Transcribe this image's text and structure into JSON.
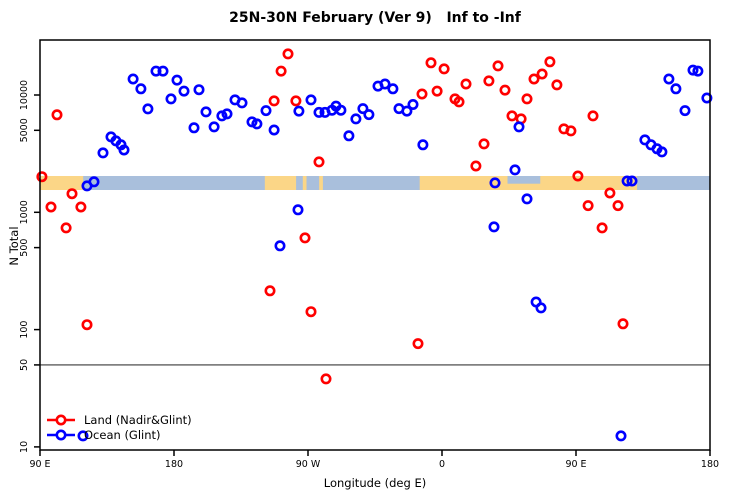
{
  "title": "25N-30N February (Ver 9)   Inf to -Inf",
  "legend": {
    "land_label": "Land (Nadir&Glint)",
    "ocean_label": "Ocean (Glint)"
  },
  "colors": {
    "land_series": "#ff0000",
    "ocean_series": "#0000ff",
    "map_land": "#fbd687",
    "map_ocean": "#a9bfdc",
    "reference_line": "#808080",
    "axis": "#000000"
  },
  "chart_data": {
    "type": "scatter",
    "title": "25N-30N February (Ver 9)   Inf to -Inf",
    "xlabel": "Longitude (deg E)",
    "ylabel": "N Total",
    "x_axis": {
      "range_deg": [
        90,
        540
      ],
      "ticks": [
        {
          "deg": 90,
          "label": "90 E"
        },
        {
          "deg": 180,
          "label": "180"
        },
        {
          "deg": 270,
          "label": "90 W"
        },
        {
          "deg": 360,
          "label": "0"
        },
        {
          "deg": 450,
          "label": "90 E"
        },
        {
          "deg": 540,
          "label": "180"
        }
      ]
    },
    "y_axis": {
      "scale": "log",
      "range": [
        10,
        30000
      ],
      "ticks": [
        10000,
        5000,
        1000,
        500,
        100,
        50,
        10
      ]
    },
    "reference_line_y": 50,
    "map_band": {
      "comment": "land/ocean strip drawn across plot near N=1800",
      "land_segments_deg": [
        [
          90,
          119
        ],
        [
          241,
          262
        ],
        [
          266.5,
          269
        ],
        [
          277.5,
          280
        ],
        [
          345,
          491
        ]
      ],
      "ocean_inlets_deg": [
        [
          404,
          426
        ]
      ]
    },
    "series": [
      {
        "name": "Land (Nadir&Glint)",
        "color": "#ff0000",
        "points": [
          [
            101.4,
            6780
          ],
          [
            91.3,
            2010
          ],
          [
            111.5,
            1440
          ],
          [
            97.4,
            1110
          ],
          [
            117.5,
            1110
          ],
          [
            107.5,
            736
          ],
          [
            121.6,
            110
          ],
          [
            256.6,
            22400
          ],
          [
            251.9,
            16000
          ],
          [
            247.2,
            8910
          ],
          [
            261.9,
            8910
          ],
          [
            277.4,
            2690
          ],
          [
            352.6,
            18800
          ],
          [
            361.4,
            16700
          ],
          [
            346.6,
            10200
          ],
          [
            356.7,
            10800
          ],
          [
            368.7,
            9260
          ],
          [
            371.4,
            8740
          ],
          [
            376.1,
            12400
          ],
          [
            391.5,
            13200
          ],
          [
            388.2,
            3830
          ],
          [
            382.8,
            2480
          ],
          [
            397.6,
            17700
          ],
          [
            402.3,
            11000
          ],
          [
            417.1,
            9260
          ],
          [
            421.8,
            13700
          ],
          [
            427.2,
            15100
          ],
          [
            432.5,
            19200
          ],
          [
            437.2,
            12200
          ],
          [
            407.0,
            6640
          ],
          [
            413.1,
            6250
          ],
          [
            461.4,
            6640
          ],
          [
            441.9,
            5140
          ],
          [
            446.6,
            4940
          ],
          [
            451.3,
            2040
          ],
          [
            472.8,
            1460
          ],
          [
            458.1,
            1140
          ],
          [
            478.2,
            1140
          ],
          [
            467.5,
            736
          ],
          [
            481.6,
            112
          ],
          [
            244.5,
            214
          ],
          [
            268.0,
            605
          ],
          [
            272.0,
            142
          ],
          [
            343.9,
            76
          ],
          [
            282.1,
            38
          ]
        ]
      },
      {
        "name": "Ocean (Glint)",
        "color": "#0000ff",
        "points": [
          [
            152.5,
            13700
          ],
          [
            157.8,
            11300
          ],
          [
            167.9,
            16000
          ],
          [
            172.6,
            16000
          ],
          [
            182.0,
            13400
          ],
          [
            162.5,
            7610
          ],
          [
            178.0,
            9260
          ],
          [
            186.7,
            10800
          ],
          [
            196.8,
            11100
          ],
          [
            193.4,
            5250
          ],
          [
            201.5,
            7180
          ],
          [
            206.9,
            5350
          ],
          [
            212.2,
            6640
          ],
          [
            215.6,
            6900
          ],
          [
            221.0,
            9080
          ],
          [
            225.7,
            8570
          ],
          [
            232.4,
            5900
          ],
          [
            235.7,
            5670
          ],
          [
            241.8,
            7360
          ],
          [
            247.2,
            5030
          ],
          [
            263.9,
            7290
          ],
          [
            272.0,
            9080
          ],
          [
            277.4,
            7100
          ],
          [
            281.4,
            7100
          ],
          [
            286.1,
            7420
          ],
          [
            288.8,
            8050
          ],
          [
            292.1,
            7420
          ],
          [
            302.2,
            6250
          ],
          [
            306.9,
            7650
          ],
          [
            310.9,
            6800
          ],
          [
            317.0,
            11900
          ],
          [
            321.7,
            12400
          ],
          [
            327.0,
            11300
          ],
          [
            331.1,
            7650
          ],
          [
            336.4,
            7290
          ],
          [
            340.5,
            8300
          ],
          [
            297.5,
            4490
          ],
          [
            347.2,
            3760
          ],
          [
            411.7,
            5350
          ],
          [
            409.0,
            2300
          ],
          [
            395.6,
            1780
          ],
          [
            121.6,
            1680
          ],
          [
            126.3,
            1820
          ],
          [
            512.4,
            13700
          ],
          [
            528.6,
            16300
          ],
          [
            531.9,
            16000
          ],
          [
            517.1,
            11300
          ],
          [
            537.9,
            9420
          ],
          [
            523.2,
            7360
          ],
          [
            496.3,
            4140
          ],
          [
            500.4,
            3760
          ],
          [
            504.4,
            3480
          ],
          [
            507.7,
            3270
          ],
          [
            484.3,
            1850
          ],
          [
            487.6,
            1850
          ],
          [
            394.9,
            751
          ],
          [
            417.1,
            1300
          ],
          [
            423.2,
            172
          ],
          [
            426.5,
            153
          ],
          [
            263.3,
            1050
          ],
          [
            251.2,
            518
          ],
          [
            480.2,
            12.4
          ],
          [
            118.9,
            12.4
          ],
          [
            132.3,
            3210
          ],
          [
            137.7,
            4390
          ],
          [
            141.0,
            4060
          ],
          [
            144.4,
            3760
          ],
          [
            146.4,
            3400
          ]
        ]
      }
    ]
  }
}
